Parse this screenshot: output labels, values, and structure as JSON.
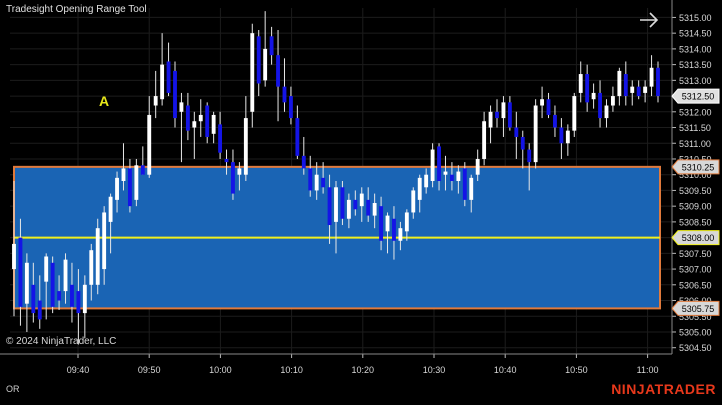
{
  "window": {
    "title": "Tradesight Opening Range Tool"
  },
  "copyright": "© 2024 NinjaTrader, LLC",
  "brand": "NINJATRADER",
  "bottom_label": "OR",
  "marker_label": "A",
  "colors": {
    "background": "#000000",
    "range_fill": "#1a64b4",
    "range_border": "#e07a3c",
    "mid_line": "#f0f01e",
    "up_candle": "#ffffff",
    "down_candle": "#1414e6",
    "brand": "#e8381b"
  },
  "chart_data": {
    "type": "candlestick",
    "y_axis_ticks": [
      "5315.00",
      "5314.50",
      "5314.00",
      "5313.50",
      "5313.00",
      "5312.50",
      "5312.00",
      "5311.50",
      "5311.00",
      "5310.50",
      "5310.00",
      "5309.50",
      "5309.00",
      "5308.50",
      "5308.00",
      "5307.50",
      "5307.00",
      "5306.50",
      "5306.00",
      "5305.50",
      "5305.00",
      "5304.50"
    ],
    "ylim": [
      5304.3,
      5315.3
    ],
    "x_axis_ticks": [
      "09:40",
      "09:50",
      "10:00",
      "10:10",
      "10:20",
      "10:30",
      "10:40",
      "10:50",
      "11:00"
    ],
    "price_markers": [
      {
        "label": "5312.50",
        "value": 5312.5,
        "style": "current"
      },
      {
        "label": "5310.25",
        "value": 5310.25,
        "style": "range-high"
      },
      {
        "label": "5308.00",
        "value": 5308.0,
        "style": "range-mid"
      },
      {
        "label": "5305.75",
        "value": 5305.75,
        "style": "range-low"
      }
    ],
    "opening_range": {
      "high": 5310.25,
      "mid": 5308.0,
      "low": 5305.75
    },
    "candles": [
      {
        "o": 5307.0,
        "h": 5309.8,
        "l": 5305.5,
        "c": 5307.8
      },
      {
        "o": 5308.0,
        "h": 5308.6,
        "l": 5305.2,
        "c": 5305.8
      },
      {
        "o": 5305.9,
        "h": 5307.5,
        "l": 5305.0,
        "c": 5307.2
      },
      {
        "o": 5306.5,
        "h": 5307.2,
        "l": 5305.3,
        "c": 5305.6
      },
      {
        "o": 5306.0,
        "h": 5306.8,
        "l": 5305.1,
        "c": 5305.4
      },
      {
        "o": 5306.6,
        "h": 5307.5,
        "l": 5305.4,
        "c": 5307.4
      },
      {
        "o": 5307.2,
        "h": 5307.4,
        "l": 5305.6,
        "c": 5305.8
      },
      {
        "o": 5306.3,
        "h": 5306.8,
        "l": 5305.7,
        "c": 5306.0
      },
      {
        "o": 5306.3,
        "h": 5307.5,
        "l": 5305.9,
        "c": 5307.3
      },
      {
        "o": 5306.5,
        "h": 5307.2,
        "l": 5305.3,
        "c": 5305.8
      },
      {
        "o": 5306.3,
        "h": 5307.0,
        "l": 5304.6,
        "c": 5305.6
      },
      {
        "o": 5305.6,
        "h": 5306.8,
        "l": 5304.8,
        "c": 5306.5
      },
      {
        "o": 5306.5,
        "h": 5307.8,
        "l": 5306.0,
        "c": 5307.6
      },
      {
        "o": 5306.5,
        "h": 5308.6,
        "l": 5306.2,
        "c": 5308.3
      },
      {
        "o": 5307.0,
        "h": 5309.0,
        "l": 5306.5,
        "c": 5308.8
      },
      {
        "o": 5308.5,
        "h": 5309.4,
        "l": 5307.5,
        "c": 5309.3
      },
      {
        "o": 5309.2,
        "h": 5310.1,
        "l": 5308.8,
        "c": 5309.9
      },
      {
        "o": 5309.8,
        "h": 5311.0,
        "l": 5309.5,
        "c": 5310.2
      },
      {
        "o": 5310.2,
        "h": 5310.5,
        "l": 5308.8,
        "c": 5309.0
      },
      {
        "o": 5309.2,
        "h": 5310.5,
        "l": 5309.0,
        "c": 5310.3
      },
      {
        "o": 5310.3,
        "h": 5310.9,
        "l": 5310.0,
        "c": 5310.0
      },
      {
        "o": 5310.0,
        "h": 5312.5,
        "l": 5309.9,
        "c": 5311.9
      },
      {
        "o": 5312.2,
        "h": 5313.3,
        "l": 5311.8,
        "c": 5312.5
      },
      {
        "o": 5312.4,
        "h": 5314.5,
        "l": 5312.2,
        "c": 5313.5
      },
      {
        "o": 5313.6,
        "h": 5314.2,
        "l": 5312.5,
        "c": 5312.6
      },
      {
        "o": 5313.3,
        "h": 5313.6,
        "l": 5311.5,
        "c": 5311.8
      },
      {
        "o": 5312.0,
        "h": 5312.6,
        "l": 5310.4,
        "c": 5312.3
      },
      {
        "o": 5312.2,
        "h": 5312.6,
        "l": 5311.1,
        "c": 5311.4
      },
      {
        "o": 5311.5,
        "h": 5312.0,
        "l": 5310.5,
        "c": 5311.7
      },
      {
        "o": 5311.7,
        "h": 5312.4,
        "l": 5311.2,
        "c": 5311.9
      },
      {
        "o": 5312.2,
        "h": 5312.3,
        "l": 5311.0,
        "c": 5311.2
      },
      {
        "o": 5311.3,
        "h": 5312.0,
        "l": 5311.0,
        "c": 5311.9
      },
      {
        "o": 5311.6,
        "h": 5312.0,
        "l": 5310.5,
        "c": 5310.7
      },
      {
        "o": 5310.5,
        "h": 5310.8,
        "l": 5310.0,
        "c": 5310.4
      },
      {
        "o": 5310.4,
        "h": 5310.8,
        "l": 5309.2,
        "c": 5309.4
      },
      {
        "o": 5310.0,
        "h": 5310.4,
        "l": 5309.5,
        "c": 5310.2
      },
      {
        "o": 5310.0,
        "h": 5312.5,
        "l": 5309.8,
        "c": 5311.8
      },
      {
        "o": 5312.0,
        "h": 5314.8,
        "l": 5311.5,
        "c": 5314.5
      },
      {
        "o": 5314.4,
        "h": 5314.6,
        "l": 5312.5,
        "c": 5312.9
      },
      {
        "o": 5313.0,
        "h": 5315.2,
        "l": 5312.8,
        "c": 5314.0
      },
      {
        "o": 5314.4,
        "h": 5314.7,
        "l": 5313.5,
        "c": 5313.8
      },
      {
        "o": 5313.8,
        "h": 5314.6,
        "l": 5311.7,
        "c": 5312.8
      },
      {
        "o": 5312.8,
        "h": 5313.7,
        "l": 5312.0,
        "c": 5312.3
      },
      {
        "o": 5312.5,
        "h": 5312.8,
        "l": 5311.6,
        "c": 5311.8
      },
      {
        "o": 5311.8,
        "h": 5312.2,
        "l": 5310.5,
        "c": 5310.6
      },
      {
        "o": 5310.6,
        "h": 5311.2,
        "l": 5310.0,
        "c": 5310.2
      },
      {
        "o": 5310.2,
        "h": 5310.6,
        "l": 5309.3,
        "c": 5309.5
      },
      {
        "o": 5309.5,
        "h": 5310.4,
        "l": 5309.2,
        "c": 5310.0
      },
      {
        "o": 5309.9,
        "h": 5310.4,
        "l": 5309.4,
        "c": 5309.6
      },
      {
        "o": 5309.6,
        "h": 5310.0,
        "l": 5307.8,
        "c": 5308.4
      },
      {
        "o": 5308.5,
        "h": 5309.8,
        "l": 5307.5,
        "c": 5309.6
      },
      {
        "o": 5309.6,
        "h": 5309.8,
        "l": 5308.4,
        "c": 5308.6
      },
      {
        "o": 5308.6,
        "h": 5309.4,
        "l": 5308.3,
        "c": 5309.2
      },
      {
        "o": 5309.2,
        "h": 5309.5,
        "l": 5308.7,
        "c": 5308.9
      },
      {
        "o": 5309.0,
        "h": 5309.6,
        "l": 5308.5,
        "c": 5309.4
      },
      {
        "o": 5309.2,
        "h": 5309.6,
        "l": 5308.5,
        "c": 5308.7
      },
      {
        "o": 5308.7,
        "h": 5309.4,
        "l": 5308.3,
        "c": 5309.1
      },
      {
        "o": 5309.0,
        "h": 5309.3,
        "l": 5307.6,
        "c": 5307.9
      },
      {
        "o": 5308.2,
        "h": 5308.8,
        "l": 5307.5,
        "c": 5308.7
      },
      {
        "o": 5308.6,
        "h": 5309.0,
        "l": 5307.3,
        "c": 5307.9
      },
      {
        "o": 5307.9,
        "h": 5308.5,
        "l": 5307.6,
        "c": 5308.3
      },
      {
        "o": 5308.2,
        "h": 5308.9,
        "l": 5307.9,
        "c": 5308.8
      },
      {
        "o": 5308.8,
        "h": 5309.6,
        "l": 5308.6,
        "c": 5309.5
      },
      {
        "o": 5309.2,
        "h": 5310.0,
        "l": 5308.8,
        "c": 5309.9
      },
      {
        "o": 5309.6,
        "h": 5310.2,
        "l": 5309.4,
        "c": 5310.0
      },
      {
        "o": 5309.8,
        "h": 5311.0,
        "l": 5309.6,
        "c": 5310.8
      },
      {
        "o": 5310.9,
        "h": 5311.0,
        "l": 5309.5,
        "c": 5309.8
      },
      {
        "o": 5310.0,
        "h": 5310.6,
        "l": 5309.5,
        "c": 5310.1
      },
      {
        "o": 5310.0,
        "h": 5310.4,
        "l": 5309.5,
        "c": 5309.8
      },
      {
        "o": 5309.8,
        "h": 5310.3,
        "l": 5309.4,
        "c": 5310.1
      },
      {
        "o": 5310.2,
        "h": 5310.4,
        "l": 5309.0,
        "c": 5309.2
      },
      {
        "o": 5309.2,
        "h": 5310.0,
        "l": 5308.8,
        "c": 5309.9
      },
      {
        "o": 5310.0,
        "h": 5310.8,
        "l": 5309.8,
        "c": 5310.5
      },
      {
        "o": 5310.5,
        "h": 5312.0,
        "l": 5310.3,
        "c": 5311.7
      },
      {
        "o": 5311.5,
        "h": 5312.2,
        "l": 5311.0,
        "c": 5312.0
      },
      {
        "o": 5312.0,
        "h": 5312.4,
        "l": 5311.5,
        "c": 5311.8
      },
      {
        "o": 5311.8,
        "h": 5312.5,
        "l": 5311.2,
        "c": 5312.3
      },
      {
        "o": 5312.3,
        "h": 5312.5,
        "l": 5311.4,
        "c": 5311.5
      },
      {
        "o": 5311.5,
        "h": 5312.0,
        "l": 5310.5,
        "c": 5311.2
      },
      {
        "o": 5311.2,
        "h": 5311.4,
        "l": 5310.2,
        "c": 5310.8
      },
      {
        "o": 5310.8,
        "h": 5311.0,
        "l": 5309.5,
        "c": 5310.4
      },
      {
        "o": 5310.4,
        "h": 5312.4,
        "l": 5310.2,
        "c": 5312.2
      },
      {
        "o": 5312.2,
        "h": 5312.8,
        "l": 5311.8,
        "c": 5312.4
      },
      {
        "o": 5312.4,
        "h": 5312.6,
        "l": 5311.8,
        "c": 5311.9
      },
      {
        "o": 5311.9,
        "h": 5312.2,
        "l": 5311.2,
        "c": 5311.5
      },
      {
        "o": 5311.5,
        "h": 5311.8,
        "l": 5310.5,
        "c": 5311.0
      },
      {
        "o": 5311.0,
        "h": 5311.6,
        "l": 5310.6,
        "c": 5311.4
      },
      {
        "o": 5311.4,
        "h": 5312.6,
        "l": 5311.2,
        "c": 5312.5
      },
      {
        "o": 5312.6,
        "h": 5313.6,
        "l": 5312.3,
        "c": 5313.2
      },
      {
        "o": 5313.2,
        "h": 5313.5,
        "l": 5312.0,
        "c": 5312.3
      },
      {
        "o": 5312.4,
        "h": 5312.9,
        "l": 5312.1,
        "c": 5312.6
      },
      {
        "o": 5312.6,
        "h": 5313.0,
        "l": 5311.5,
        "c": 5311.8
      },
      {
        "o": 5311.8,
        "h": 5312.4,
        "l": 5311.5,
        "c": 5312.2
      },
      {
        "o": 5312.2,
        "h": 5312.8,
        "l": 5312.0,
        "c": 5312.5
      },
      {
        "o": 5312.5,
        "h": 5313.4,
        "l": 5312.2,
        "c": 5313.3
      },
      {
        "o": 5313.2,
        "h": 5313.6,
        "l": 5312.2,
        "c": 5312.5
      },
      {
        "o": 5312.6,
        "h": 5313.0,
        "l": 5312.2,
        "c": 5312.8
      },
      {
        "o": 5312.8,
        "h": 5313.0,
        "l": 5312.4,
        "c": 5312.5
      },
      {
        "o": 5312.6,
        "h": 5313.0,
        "l": 5312.3,
        "c": 5312.8
      },
      {
        "o": 5312.8,
        "h": 5313.8,
        "l": 5312.5,
        "c": 5313.4
      },
      {
        "o": 5313.4,
        "h": 5313.6,
        "l": 5312.3,
        "c": 5312.5
      }
    ]
  }
}
